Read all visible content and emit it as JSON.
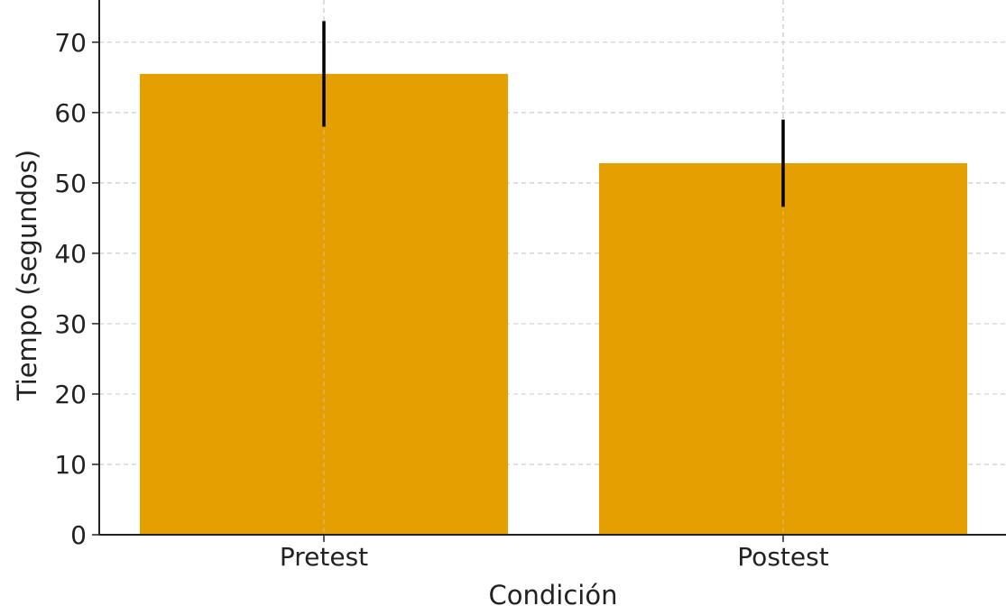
{
  "chart_data": {
    "type": "bar",
    "categories": [
      "Pretest",
      "Postest"
    ],
    "values": [
      65.5,
      52.8
    ],
    "error": [
      7.5,
      6.2
    ],
    "xlabel": "Condición",
    "ylabel": "Tiempo (segundos)",
    "ylim": [
      0,
      76
    ],
    "yticks": [
      0,
      10,
      20,
      30,
      40,
      50,
      60,
      70
    ],
    "grid": true,
    "bar_color": "#E69F00",
    "error_color": "#000000",
    "grid_color": "#cccccc",
    "axis_color": "#222222"
  }
}
